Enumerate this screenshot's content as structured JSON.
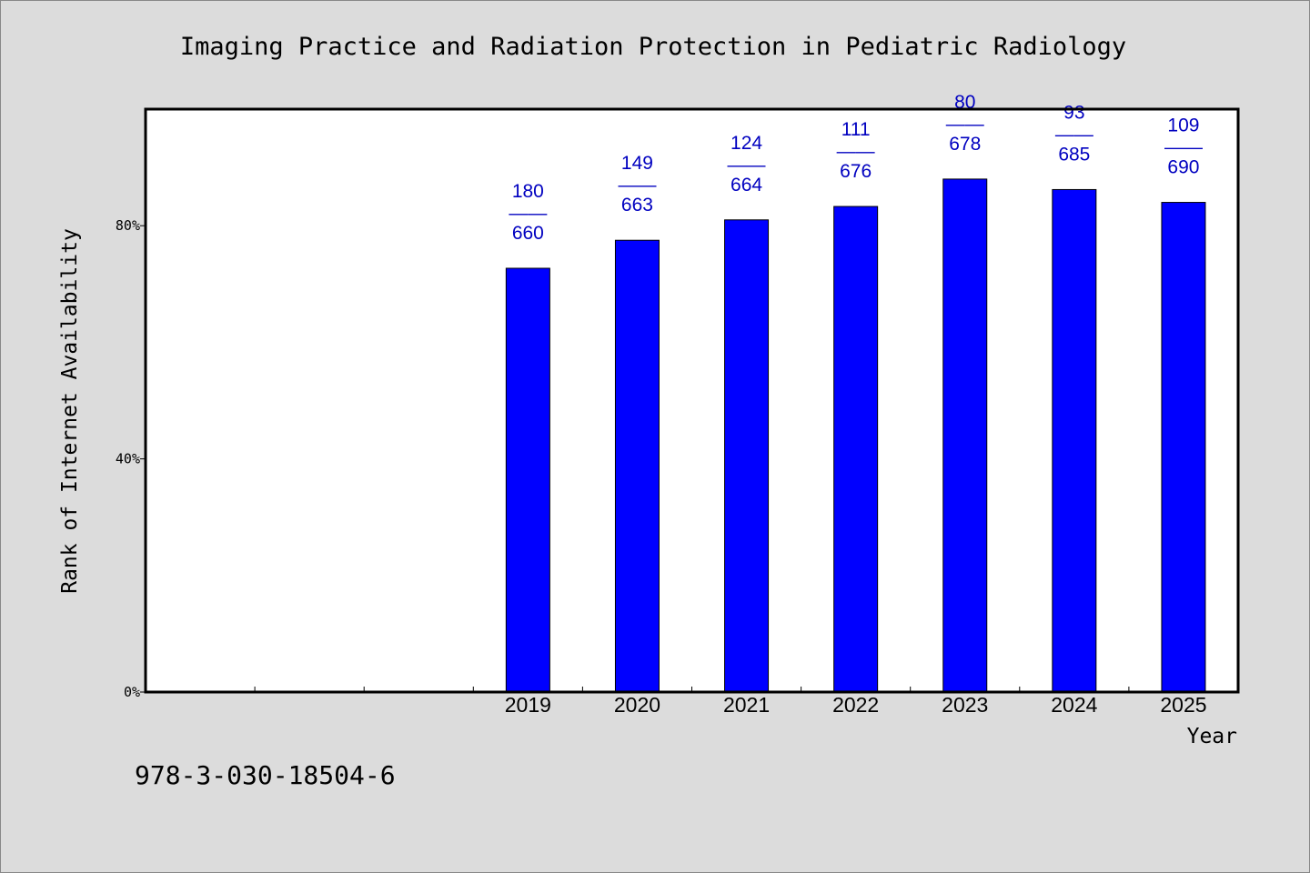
{
  "chart_data": {
    "type": "bar",
    "title": "Imaging Practice and Radiation Protection in Pediatric Radiology",
    "xlabel": "Year",
    "ylabel": "Rank of Internet Availability",
    "ylim": [
      0,
      100
    ],
    "yticks": [
      {
        "value": 0,
        "label": "0%"
      },
      {
        "value": 40,
        "label": "40%"
      },
      {
        "value": 80,
        "label": "80%"
      }
    ],
    "categories": [
      "",
      "",
      "",
      "2019",
      "2020",
      "2021",
      "2022",
      "2023",
      "2024",
      "2025"
    ],
    "values": [
      null,
      null,
      null,
      72.7,
      77.5,
      81.0,
      83.3,
      88.0,
      86.2,
      84.0
    ],
    "data_labels": [
      null,
      null,
      null,
      {
        "top": "180",
        "mid": "——",
        "bottom": "660"
      },
      {
        "top": "149",
        "mid": "——",
        "bottom": "663"
      },
      {
        "top": "124",
        "mid": "——",
        "bottom": "664"
      },
      {
        "top": "111",
        "mid": "——",
        "bottom": "676"
      },
      {
        "top": "80",
        "mid": "——",
        "bottom": "678"
      },
      {
        "top": "93",
        "mid": "——",
        "bottom": "685"
      },
      {
        "top": "109",
        "mid": "——",
        "bottom": "690"
      }
    ],
    "bar_color": "#0000ff",
    "label_color": "#0000c0",
    "grid": false
  },
  "footer_text": "978-3-030-18504-6"
}
